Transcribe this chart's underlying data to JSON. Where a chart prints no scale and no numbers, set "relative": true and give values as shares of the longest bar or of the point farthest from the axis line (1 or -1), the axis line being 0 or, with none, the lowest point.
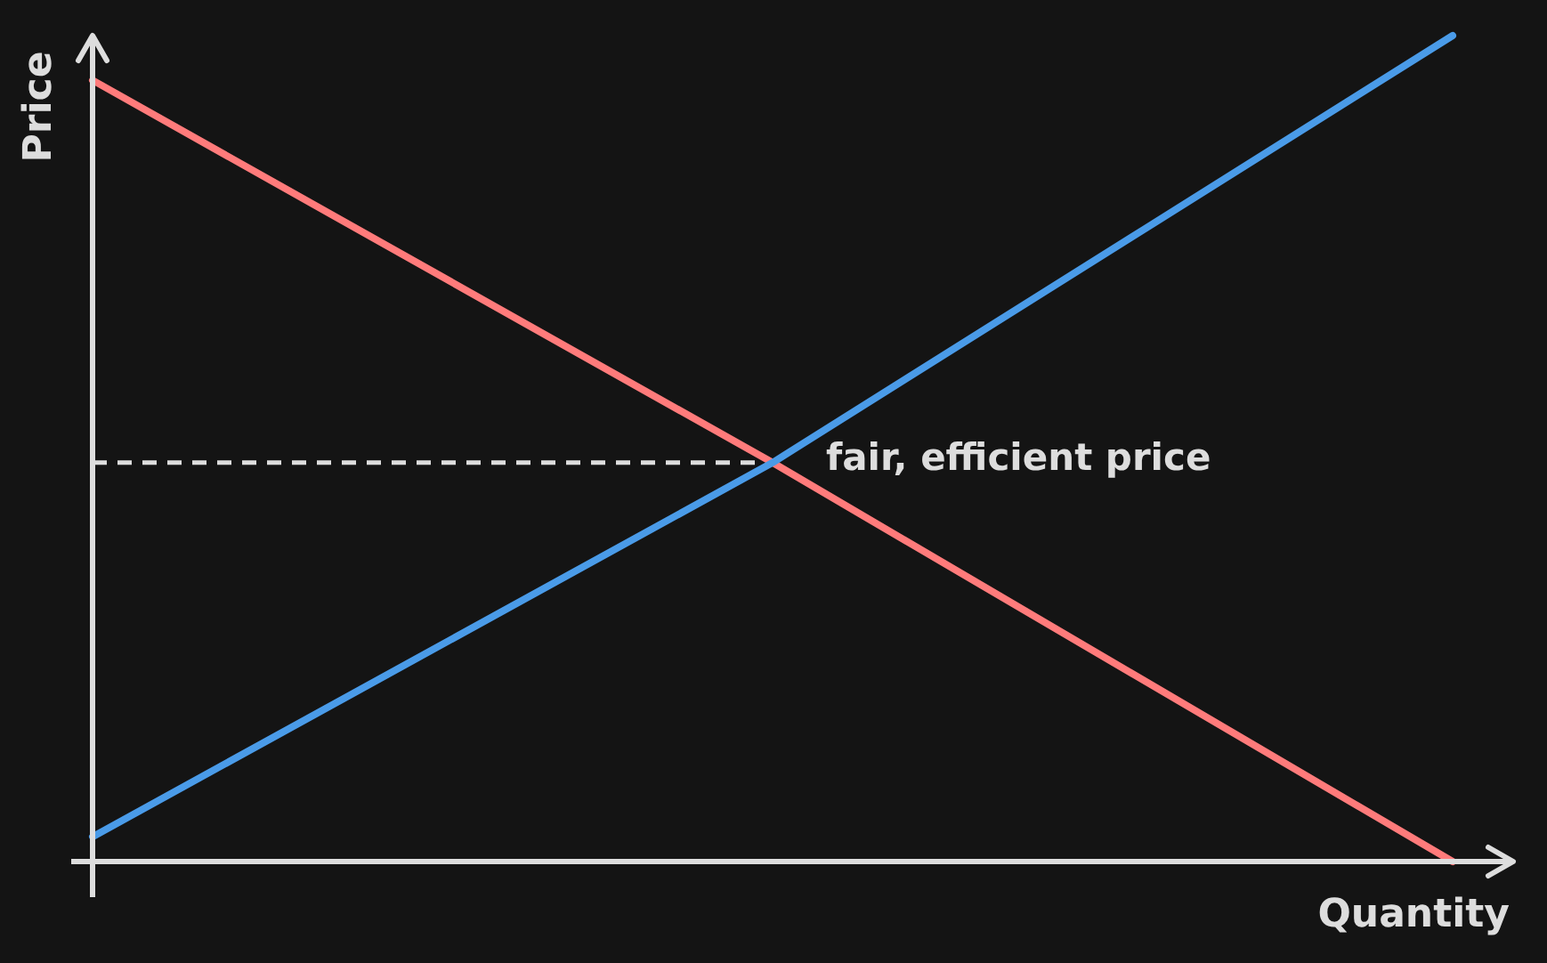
{
  "chart_data": {
    "type": "line",
    "relative": true,
    "xlabel": "Quantity",
    "ylabel": "Price",
    "categories": [
      null,
      null,
      null
    ],
    "series": [
      {
        "type": "line",
        "color": "#dddddd",
        "line_style": "dashed",
        "values": [
          0.483,
          0.483,
          null
        ]
      },
      {
        "color": "#ff7b7b",
        "values": [
          0.946,
          0.483,
          0
        ]
      },
      {
        "color": "#4a9be8",
        "values": [
          0.03,
          0.483,
          1
        ]
      }
    ],
    "annotations": [
      "fair, efficient price"
    ],
    "grid": false,
    "marker": "none",
    "line_style": "solid"
  }
}
